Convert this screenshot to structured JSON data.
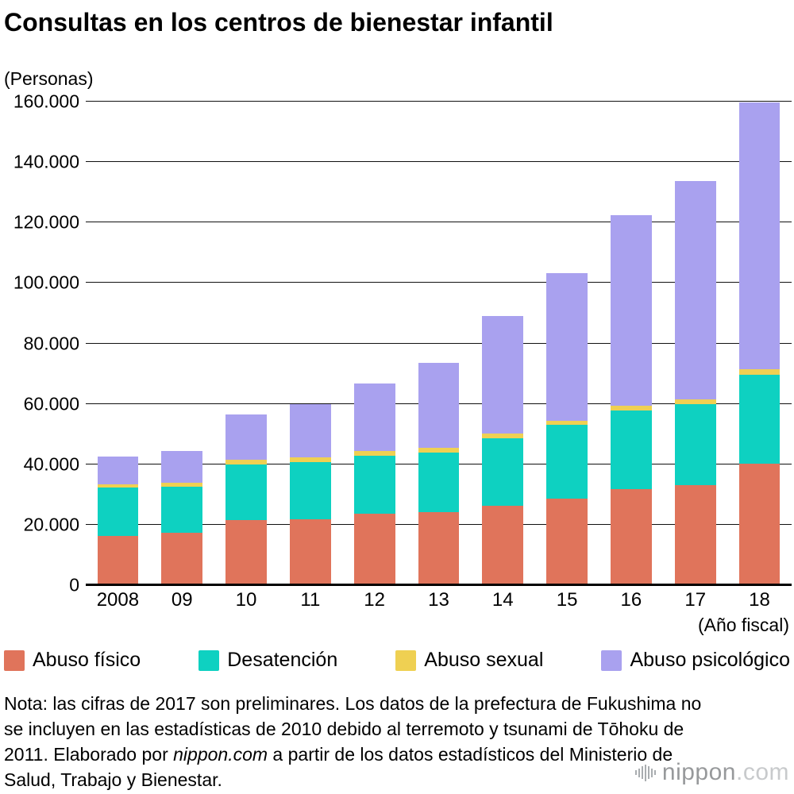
{
  "title": "Consultas en los centros de bienestar infantil",
  "y_unit_label": "(Personas)",
  "x_unit_label": "(Año fiscal)",
  "chart_data": {
    "type": "bar",
    "stacked": true,
    "title": "Consultas en los centros de bienestar infantil",
    "ylabel": "(Personas)",
    "xlabel": "(Año fiscal)",
    "grid": true,
    "legend_position": "bottom",
    "ylim": [
      0,
      160000
    ],
    "y_tick_step": 20000,
    "y_tick_labels": [
      "0",
      "20.000",
      "40.000",
      "60.000",
      "80.000",
      "100.000",
      "120.000",
      "140.000",
      "160.000"
    ],
    "categories": [
      "2008",
      "09",
      "10",
      "11",
      "12",
      "13",
      "14",
      "15",
      "16",
      "17",
      "18"
    ],
    "series": [
      {
        "name": "Abuso físico",
        "color": "#e0745b",
        "values": [
          16300,
          17400,
          21600,
          21900,
          23600,
          24200,
          26200,
          28600,
          31900,
          33200,
          40200
        ]
      },
      {
        "name": "Desatención",
        "color": "#0ed1c1",
        "values": [
          15900,
          15200,
          18400,
          18800,
          19300,
          19600,
          22500,
          24400,
          25800,
          26800,
          29500
        ]
      },
      {
        "name": "Abuso sexual",
        "color": "#efd052",
        "values": [
          1300,
          1400,
          1400,
          1500,
          1400,
          1600,
          1500,
          1500,
          1600,
          1500,
          1700
        ]
      },
      {
        "name": "Abuso psicológico",
        "color": "#a9a1ef",
        "values": [
          9100,
          10300,
          15100,
          17700,
          22400,
          28300,
          38800,
          48700,
          63200,
          72200,
          88400
        ]
      }
    ]
  },
  "legend": [
    {
      "label": "Abuso físico",
      "color": "#e0745b"
    },
    {
      "label": "Desatención",
      "color": "#0ed1c1"
    },
    {
      "label": "Abuso sexual",
      "color": "#efd052"
    },
    {
      "label": "Abuso psicológico",
      "color": "#a9a1ef"
    }
  ],
  "note": {
    "before_italic": "Nota: las cifras de 2017 son preliminares. Los datos de la prefectura de Fukushima no se incluyen en las estadísticas de 2010 debido al terremoto y tsunami de Tōhoku de 2011. Elaborado por ",
    "italic": "nippon.com",
    "after_italic": " a partir de los datos estadísticos del Ministerio de Salud, Trabajo y Bienestar."
  },
  "logo": {
    "name": "nippon",
    "tld": ".com"
  }
}
